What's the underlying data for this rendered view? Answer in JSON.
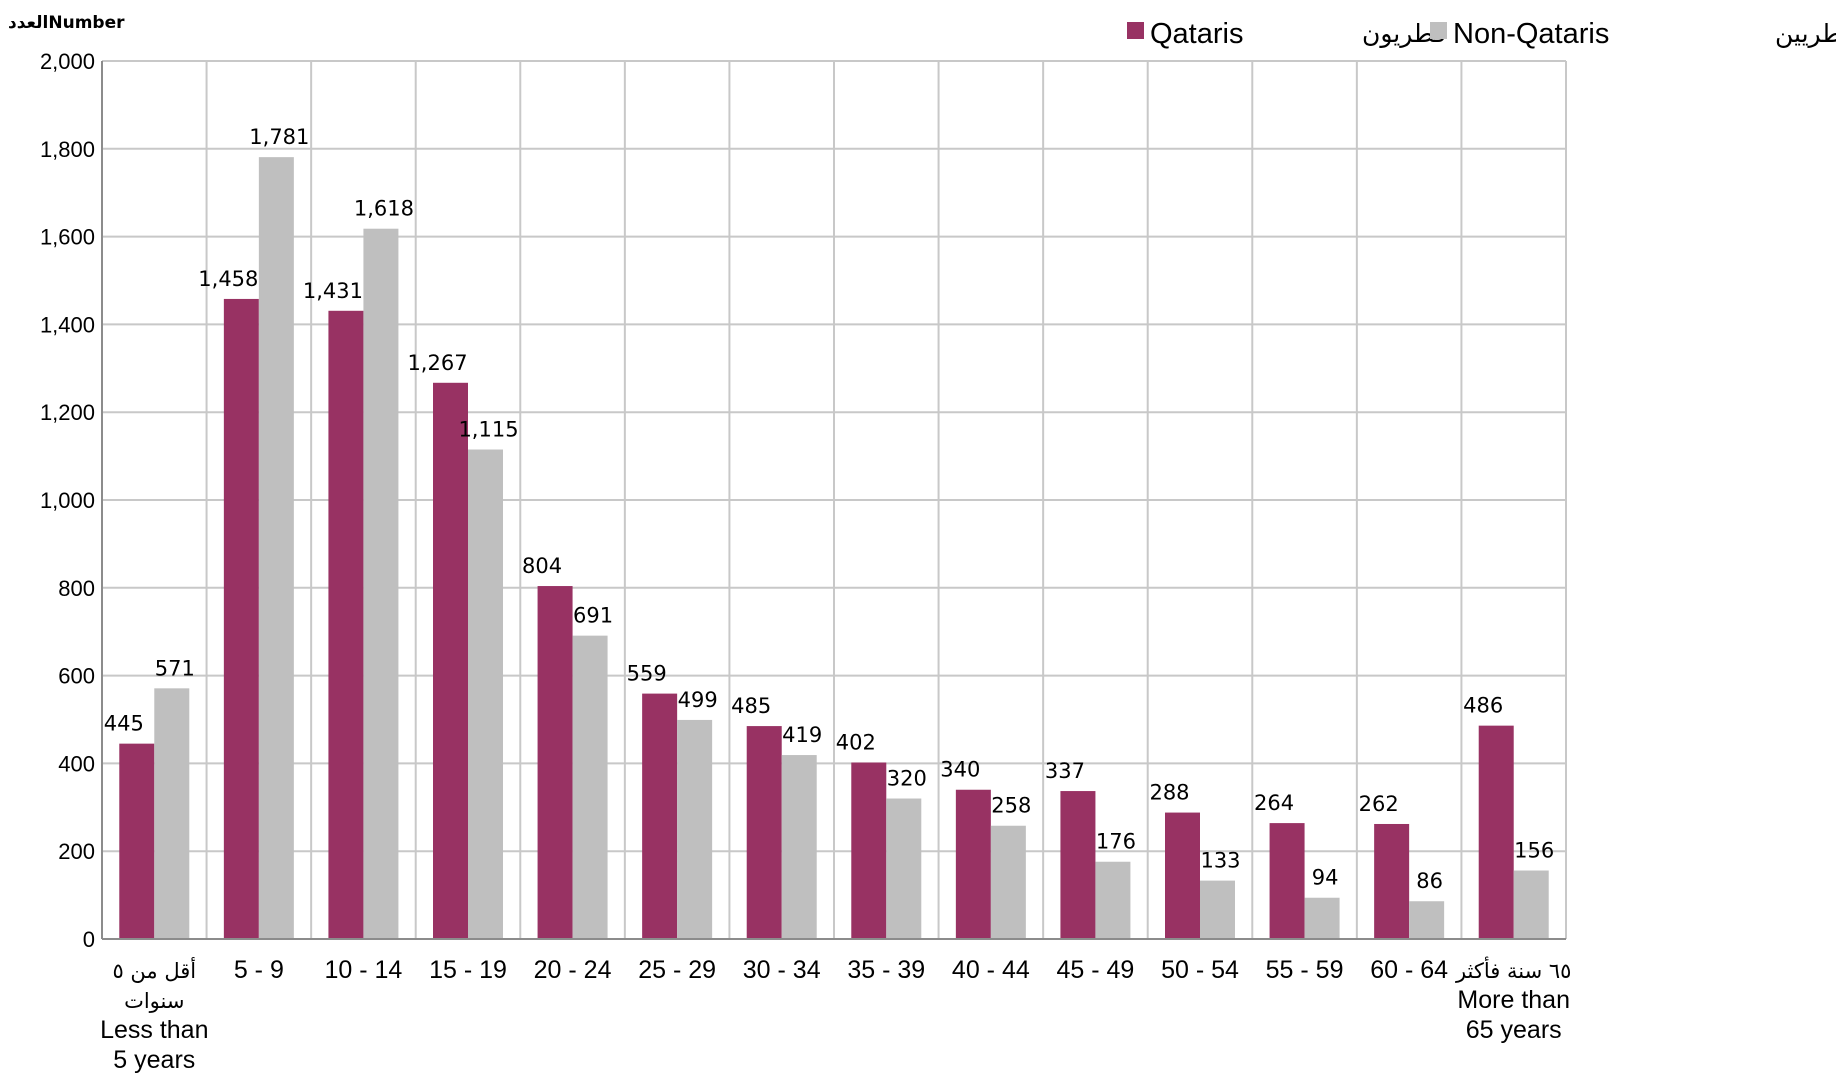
{
  "chart_data": {
    "type": "bar",
    "ylabel": "العددNumber",
    "ylim": [
      0,
      2000
    ],
    "yticks": [
      "0",
      "200",
      "400",
      "600",
      "800",
      "1,000",
      "1,200",
      "1,400",
      "1,600",
      "1,800",
      "2,000"
    ],
    "grid": true,
    "legend_position": "top-right",
    "categories": [
      {
        "en": [
          "Less than",
          "5 years"
        ],
        "ar": [
          "أقل من ٥",
          "سنوات"
        ]
      },
      {
        "en": [
          "5 - 9"
        ],
        "ar": []
      },
      {
        "en": [
          "10 - 14"
        ],
        "ar": []
      },
      {
        "en": [
          "15 - 19"
        ],
        "ar": []
      },
      {
        "en": [
          "20 - 24"
        ],
        "ar": []
      },
      {
        "en": [
          "25 - 29"
        ],
        "ar": []
      },
      {
        "en": [
          "30 - 34"
        ],
        "ar": []
      },
      {
        "en": [
          "35 - 39"
        ],
        "ar": []
      },
      {
        "en": [
          "40 - 44"
        ],
        "ar": []
      },
      {
        "en": [
          "45 - 49"
        ],
        "ar": []
      },
      {
        "en": [
          "50 - 54"
        ],
        "ar": []
      },
      {
        "en": [
          "55 - 59"
        ],
        "ar": []
      },
      {
        "en": [
          "60 - 64"
        ],
        "ar": []
      },
      {
        "en": [
          "More than",
          "65 years"
        ],
        "ar": [
          "٦٥ سنة فأكثر"
        ]
      }
    ],
    "series": [
      {
        "name": "Qataris",
        "name_ar": "قطريون",
        "color": "#983263",
        "values": [
          445,
          1458,
          1431,
          1267,
          804,
          559,
          485,
          402,
          340,
          337,
          288,
          264,
          262,
          486
        ],
        "labels": [
          "445",
          "1,458",
          "1,431",
          "1,267",
          "804",
          "559",
          "485",
          "402",
          "340",
          "337",
          "288",
          "264",
          "262",
          "486"
        ]
      },
      {
        "name": "Non-Qataris",
        "name_ar": "غير قطريين",
        "color": "#bfbfbf",
        "values": [
          571,
          1781,
          1618,
          1115,
          691,
          499,
          419,
          320,
          258,
          176,
          133,
          94,
          86,
          156
        ],
        "labels": [
          "571",
          "1,781",
          "1,618",
          "1,115",
          "691",
          "499",
          "419",
          "320",
          "258",
          "176",
          "133",
          "94",
          "86",
          "156"
        ]
      }
    ]
  }
}
